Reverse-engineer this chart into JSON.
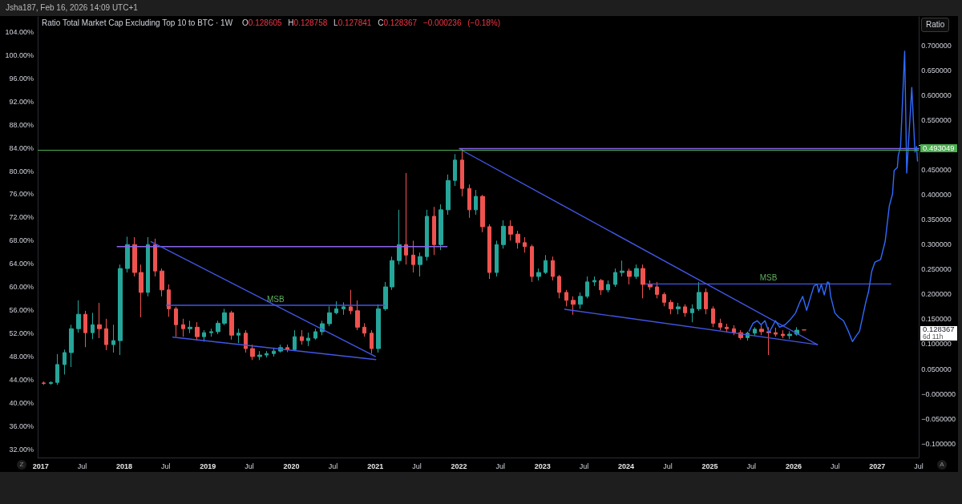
{
  "chart_data": {
    "type": "candlestick",
    "title": "Ratio Total Market Cap Excluding Top 10 to BTC · 1W",
    "subtitle": "O0.128605 H0.128758 L0.127841 C0.128367 −0.000236 (−0.18%)",
    "xlim": [
      "2016-12-19",
      "2027-07-02"
    ],
    "xticks": [
      "2017",
      {
        "value": "2017-07",
        "label": "Jul"
      },
      "2018",
      {
        "value": "2018-07",
        "label": "Jul"
      },
      "2019",
      {
        "value": "2019-07",
        "label": "Jul"
      },
      "2020",
      {
        "value": "2020-07",
        "label": "Jul"
      },
      "2021",
      {
        "value": "2021-07",
        "label": "Jul"
      },
      "2022",
      {
        "value": "2022-07",
        "label": "Jul"
      },
      "2023",
      {
        "value": "2023-07",
        "label": "Jul"
      },
      "2024",
      {
        "value": "2024-07",
        "label": "Jul"
      },
      "2025",
      {
        "value": "2025-07",
        "label": "Jul"
      },
      "2026",
      {
        "value": "2026-07",
        "label": "Jul"
      },
      "2027",
      {
        "value": "2027-07",
        "label": "Jul"
      }
    ],
    "ylim": [
      30.6,
      106.6
    ],
    "yticks": [
      {
        "value": 32,
        "label": "32.00%"
      },
      {
        "value": 36,
        "label": "36.00%"
      },
      {
        "value": 40,
        "label": "40.00%"
      },
      {
        "value": 44,
        "label": "44.00%"
      },
      {
        "value": 48,
        "label": "48.00%"
      },
      {
        "value": 52,
        "label": "52.00%"
      },
      {
        "value": 56,
        "label": "56.00%"
      },
      {
        "value": 60,
        "label": "60.00%"
      },
      {
        "value": 64,
        "label": "64.00%"
      },
      {
        "value": 68,
        "label": "68.00%"
      },
      {
        "value": 72,
        "label": "72.00%"
      },
      {
        "value": 76,
        "label": "76.00%"
      },
      {
        "value": 80,
        "label": "80.00%"
      },
      {
        "value": 84,
        "label": "84.00%"
      },
      {
        "value": 88,
        "label": "88.00%"
      },
      {
        "value": 92,
        "label": "92.00%"
      },
      {
        "value": 96,
        "label": "96.00%"
      },
      {
        "value": 100,
        "label": "100.00%"
      },
      {
        "value": 104,
        "label": "104.00%"
      }
    ],
    "y2lim": [
      -0.128,
      0.758
    ],
    "y2ticks": [
      {
        "value": -0.1,
        "label": "−0.100000"
      },
      {
        "value": -0.05,
        "label": "−0.050000"
      },
      {
        "value": 0,
        "label": "−0.000000"
      },
      {
        "value": 0.05,
        "label": "0.050000"
      },
      {
        "value": 0.1,
        "label": "0.100000"
      },
      {
        "value": 0.15,
        "label": "0.150000"
      },
      {
        "value": 0.2,
        "label": "0.200000"
      },
      {
        "value": 0.25,
        "label": "0.250000"
      },
      {
        "value": 0.3,
        "label": "0.300000"
      },
      {
        "value": 0.35,
        "label": "0.350000"
      },
      {
        "value": 0.4,
        "label": "0.400000"
      },
      {
        "value": 0.45,
        "label": "0.450000"
      },
      {
        "value": 0.5,
        "label": null
      },
      {
        "value": 0.55,
        "label": "0.550000"
      },
      {
        "value": 0.6,
        "label": "0.600000"
      },
      {
        "value": 0.65,
        "label": "0.650000"
      },
      {
        "value": 0.7,
        "label": "0.700000"
      }
    ],
    "series": [
      {
        "axis": "y2",
        "x": [
          "2017-01-15",
          "2017-02-15",
          "2017-03-15",
          "2017-04-15",
          "2017-05-15",
          "2017-06-15",
          "2017-07-15",
          "2017-08-15",
          "2017-09-15",
          "2017-10-15",
          "2017-11-15",
          "2017-12-15",
          "2018-01-15",
          "2018-02-15",
          "2018-03-15",
          "2018-04-15",
          "2018-05-15",
          "2018-06-15",
          "2018-07-15",
          "2018-08-15",
          "2018-09-15",
          "2018-10-15",
          "2018-11-15",
          "2018-12-15",
          "2019-01-15",
          "2019-02-15",
          "2019-03-15",
          "2019-04-15",
          "2019-05-15",
          "2019-06-15",
          "2019-07-15",
          "2019-08-15",
          "2019-09-15",
          "2019-10-15",
          "2019-11-15",
          "2019-12-15",
          "2020-01-15",
          "2020-02-15",
          "2020-03-15",
          "2020-04-15",
          "2020-05-15",
          "2020-06-15",
          "2020-07-15",
          "2020-08-15",
          "2020-09-15",
          "2020-10-15",
          "2020-11-15",
          "2020-12-15",
          "2021-01-15",
          "2021-02-15",
          "2021-03-15",
          "2021-04-15",
          "2021-05-15",
          "2021-06-15",
          "2021-07-15",
          "2021-08-15",
          "2021-09-15",
          "2021-10-15",
          "2021-11-15",
          "2021-12-15",
          "2022-01-15",
          "2022-02-15",
          "2022-03-15",
          "2022-04-15",
          "2022-05-15",
          "2022-06-15",
          "2022-07-15",
          "2022-08-15",
          "2022-09-15",
          "2022-10-15",
          "2022-11-15",
          "2022-12-15",
          "2023-01-15",
          "2023-02-15",
          "2023-03-15",
          "2023-04-15",
          "2023-05-15",
          "2023-06-15",
          "2023-07-15",
          "2023-08-15",
          "2023-09-15",
          "2023-10-15",
          "2023-11-15",
          "2023-12-15",
          "2024-01-15",
          "2024-02-15",
          "2024-03-15",
          "2024-04-15",
          "2024-05-15",
          "2024-06-15",
          "2024-07-15",
          "2024-08-15",
          "2024-09-15",
          "2024-10-15",
          "2024-11-15",
          "2024-12-15",
          "2025-01-15",
          "2025-02-15",
          "2025-03-15",
          "2025-04-15",
          "2025-05-15",
          "2025-06-15",
          "2025-07-15",
          "2025-08-15",
          "2025-09-15",
          "2025-10-15",
          "2025-11-15",
          "2025-12-15",
          "2026-01-15",
          "2026-02-16"
        ],
        "ohlc": [
          [
            0.022,
            0.025,
            0.018,
            0.021
          ],
          [
            0.021,
            0.025,
            0.018,
            0.023
          ],
          [
            0.023,
            0.08,
            0.018,
            0.059
          ],
          [
            0.059,
            0.089,
            0.039,
            0.083
          ],
          [
            0.083,
            0.139,
            0.054,
            0.131
          ],
          [
            0.131,
            0.188,
            0.123,
            0.16
          ],
          [
            0.16,
            0.167,
            0.094,
            0.123
          ],
          [
            0.123,
            0.163,
            0.11,
            0.139
          ],
          [
            0.139,
            0.183,
            0.112,
            0.131
          ],
          [
            0.131,
            0.151,
            0.088,
            0.099
          ],
          [
            0.099,
            0.139,
            0.083,
            0.107
          ],
          [
            0.107,
            0.26,
            0.078,
            0.252
          ],
          [
            0.252,
            0.316,
            0.244,
            0.3
          ],
          [
            0.3,
            0.315,
            0.236,
            0.244
          ],
          [
            0.244,
            0.26,
            0.154,
            0.204
          ],
          [
            0.204,
            0.315,
            0.196,
            0.3
          ],
          [
            0.3,
            0.312,
            0.236,
            0.247
          ],
          [
            0.247,
            0.252,
            0.196,
            0.209
          ],
          [
            0.209,
            0.22,
            0.155,
            0.171
          ],
          [
            0.171,
            0.175,
            0.115,
            0.139
          ],
          [
            0.139,
            0.151,
            0.115,
            0.131
          ],
          [
            0.131,
            0.147,
            0.122,
            0.134
          ],
          [
            0.134,
            0.144,
            0.107,
            0.115
          ],
          [
            0.115,
            0.128,
            0.105,
            0.123
          ],
          [
            0.123,
            0.131,
            0.115,
            0.125
          ],
          [
            0.125,
            0.147,
            0.12,
            0.142
          ],
          [
            0.142,
            0.171,
            0.138,
            0.163
          ],
          [
            0.163,
            0.167,
            0.109,
            0.118
          ],
          [
            0.118,
            0.131,
            0.102,
            0.122
          ],
          [
            0.122,
            0.128,
            0.083,
            0.091
          ],
          [
            0.091,
            0.099,
            0.068,
            0.075
          ],
          [
            0.075,
            0.086,
            0.068,
            0.078
          ],
          [
            0.078,
            0.086,
            0.073,
            0.081
          ],
          [
            0.081,
            0.093,
            0.075,
            0.086
          ],
          [
            0.086,
            0.099,
            0.083,
            0.093
          ],
          [
            0.093,
            0.099,
            0.084,
            0.089
          ],
          [
            0.089,
            0.128,
            0.086,
            0.115
          ],
          [
            0.115,
            0.128,
            0.099,
            0.107
          ],
          [
            0.107,
            0.123,
            0.096,
            0.112
          ],
          [
            0.112,
            0.131,
            0.109,
            0.125
          ],
          [
            0.125,
            0.147,
            0.118,
            0.141
          ],
          [
            0.141,
            0.176,
            0.136,
            0.163
          ],
          [
            0.163,
            0.186,
            0.16,
            0.171
          ],
          [
            0.171,
            0.184,
            0.159,
            0.175
          ],
          [
            0.175,
            0.209,
            0.16,
            0.167
          ],
          [
            0.167,
            0.188,
            0.128,
            0.134
          ],
          [
            0.134,
            0.142,
            0.115,
            0.122
          ],
          [
            0.122,
            0.128,
            0.081,
            0.091
          ],
          [
            0.091,
            0.18,
            0.083,
            0.171
          ],
          [
            0.171,
            0.225,
            0.167,
            0.215
          ],
          [
            0.215,
            0.276,
            0.209,
            0.268
          ],
          [
            0.268,
            0.37,
            0.26,
            0.3
          ],
          [
            0.3,
            0.444,
            0.26,
            0.279
          ],
          [
            0.279,
            0.308,
            0.244,
            0.26
          ],
          [
            0.26,
            0.284,
            0.236,
            0.276
          ],
          [
            0.276,
            0.37,
            0.268,
            0.357
          ],
          [
            0.357,
            0.376,
            0.279,
            0.3
          ],
          [
            0.3,
            0.381,
            0.289,
            0.37
          ],
          [
            0.37,
            0.441,
            0.36,
            0.429
          ],
          [
            0.429,
            0.482,
            0.418,
            0.47
          ],
          [
            0.47,
            0.493,
            0.397,
            0.413
          ],
          [
            0.413,
            0.421,
            0.354,
            0.37
          ],
          [
            0.37,
            0.41,
            0.36,
            0.397
          ],
          [
            0.397,
            0.4,
            0.325,
            0.336
          ],
          [
            0.336,
            0.341,
            0.231,
            0.244
          ],
          [
            0.244,
            0.308,
            0.236,
            0.3
          ],
          [
            0.3,
            0.349,
            0.292,
            0.337
          ],
          [
            0.337,
            0.349,
            0.308,
            0.321
          ],
          [
            0.321,
            0.328,
            0.292,
            0.304
          ],
          [
            0.304,
            0.315,
            0.284,
            0.296
          ],
          [
            0.296,
            0.3,
            0.225,
            0.236
          ],
          [
            0.236,
            0.252,
            0.228,
            0.244
          ],
          [
            0.244,
            0.279,
            0.241,
            0.268
          ],
          [
            0.268,
            0.276,
            0.228,
            0.236
          ],
          [
            0.236,
            0.239,
            0.192,
            0.204
          ],
          [
            0.204,
            0.209,
            0.176,
            0.188
          ],
          [
            0.188,
            0.196,
            0.159,
            0.18
          ],
          [
            0.18,
            0.204,
            0.171,
            0.196
          ],
          [
            0.196,
            0.236,
            0.192,
            0.225
          ],
          [
            0.225,
            0.236,
            0.217,
            0.228
          ],
          [
            0.228,
            0.231,
            0.199,
            0.209
          ],
          [
            0.209,
            0.228,
            0.204,
            0.22
          ],
          [
            0.22,
            0.252,
            0.215,
            0.244
          ],
          [
            0.244,
            0.268,
            0.236,
            0.247
          ],
          [
            0.247,
            0.252,
            0.22,
            0.236
          ],
          [
            0.236,
            0.26,
            0.231,
            0.252
          ],
          [
            0.252,
            0.26,
            0.192,
            0.22
          ],
          [
            0.22,
            0.228,
            0.209,
            0.215
          ],
          [
            0.215,
            0.225,
            0.192,
            0.2
          ],
          [
            0.2,
            0.204,
            0.176,
            0.184
          ],
          [
            0.184,
            0.189,
            0.16,
            0.171
          ],
          [
            0.171,
            0.183,
            0.16,
            0.175
          ],
          [
            0.175,
            0.18,
            0.155,
            0.163
          ],
          [
            0.163,
            0.18,
            0.144,
            0.171
          ],
          [
            0.171,
            0.225,
            0.167,
            0.204
          ],
          [
            0.204,
            0.212,
            0.16,
            0.171
          ],
          [
            0.171,
            0.176,
            0.134,
            0.142
          ],
          [
            0.142,
            0.151,
            0.128,
            0.134
          ],
          [
            0.134,
            0.141,
            0.123,
            0.131
          ],
          [
            0.131,
            0.138,
            0.118,
            0.123
          ],
          [
            0.123,
            0.128,
            0.109,
            0.113
          ],
          [
            0.113,
            0.125,
            0.107,
            0.122
          ],
          [
            0.122,
            0.134,
            0.117,
            0.13
          ],
          [
            0.13,
            0.138,
            0.118,
            0.125
          ],
          [
            0.125,
            0.134,
            0.078,
            0.123
          ],
          [
            0.123,
            0.133,
            0.115,
            0.12
          ],
          [
            0.12,
            0.128,
            0.112,
            0.117
          ],
          [
            0.117,
            0.126,
            0.11,
            0.12
          ],
          [
            0.12,
            0.134,
            0.117,
            0.128
          ],
          [
            0.128605,
            0.128758,
            0.127841,
            0.128367
          ]
        ],
        "colors": [
          "#ef5350",
          "#26a69a",
          "#26a69a",
          "#26a69a",
          "#26a69a",
          "#26a69a",
          "#ef5350",
          "#26a69a",
          "#ef5350",
          "#ef5350",
          "#26a69a",
          "#26a69a",
          "#26a69a",
          "#ef5350",
          "#ef5350",
          "#26a69a",
          "#ef5350",
          "#ef5350",
          "#ef5350",
          "#ef5350",
          "#ef5350",
          "#26a69a",
          "#ef5350",
          "#26a69a",
          "#26a69a",
          "#26a69a",
          "#26a69a",
          "#ef5350",
          "#26a69a",
          "#ef5350",
          "#ef5350",
          "#26a69a",
          "#26a69a",
          "#26a69a",
          "#26a69a",
          "#ef5350",
          "#26a69a",
          "#ef5350",
          "#26a69a",
          "#26a69a",
          "#26a69a",
          "#26a69a",
          "#26a69a",
          "#26a69a",
          "#ef5350",
          "#ef5350",
          "#ef5350",
          "#ef5350",
          "#26a69a",
          "#26a69a",
          "#26a69a",
          "#26a69a",
          "#ef5350",
          "#ef5350",
          "#26a69a",
          "#26a69a",
          "#ef5350",
          "#26a69a",
          "#26a69a",
          "#26a69a",
          "#ef5350",
          "#ef5350",
          "#26a69a",
          "#ef5350",
          "#ef5350",
          "#26a69a",
          "#26a69a",
          "#ef5350",
          "#ef5350",
          "#ef5350",
          "#ef5350",
          "#26a69a",
          "#26a69a",
          "#ef5350",
          "#ef5350",
          "#ef5350",
          "#ef5350",
          "#26a69a",
          "#26a69a",
          "#26a69a",
          "#ef5350",
          "#26a69a",
          "#26a69a",
          "#26a69a",
          "#ef5350",
          "#26a69a",
          "#ef5350",
          "#ef5350",
          "#ef5350",
          "#ef5350",
          "#ef5350",
          "#26a69a",
          "#ef5350",
          "#26a69a",
          "#26a69a",
          "#ef5350",
          "#ef5350",
          "#ef5350",
          "#ef5350",
          "#ef5350",
          "#ef5350",
          "#26a69a",
          "#26a69a",
          "#ef5350",
          "#ef5350",
          "#ef5350",
          "#ef5350",
          "#26a69a",
          "#26a69a",
          "#ef5350"
        ]
      },
      {
        "type": "line",
        "axis": "y2",
        "color": "#8a64e8",
        "x": [
          "2017-12-01",
          "2021-11-10"
        ],
        "values": [
          0.296,
          0.296
        ]
      },
      {
        "type": "line",
        "axis": "y2",
        "color": "#4256e6",
        "x": [
          "2018-04-28",
          "2021-01-01"
        ],
        "values": [
          0.306,
          0.075
        ]
      },
      {
        "type": "line",
        "axis": "y2",
        "name": "MSB",
        "color": "#4256e6",
        "x": [
          "2018-07-04",
          "2021-02-11"
        ],
        "values": [
          0.178,
          0.178
        ]
      },
      {
        "type": "line",
        "axis": "y2",
        "color": "#4256e6",
        "x": [
          "2018-08-01",
          "2021-01-03"
        ],
        "values": [
          0.114,
          0.069
        ]
      },
      {
        "type": "line",
        "axis": "y2",
        "color": "#4256e6",
        "x": [
          "2022-01-09",
          "2026-04-15"
        ],
        "values": [
          0.491,
          0.099
        ]
      },
      {
        "type": "line",
        "axis": "y2",
        "color": "#4256e6",
        "x": [
          "2023-04-08",
          "2026-04-15"
        ],
        "values": [
          0.17,
          0.099
        ]
      },
      {
        "type": "line",
        "axis": "y2",
        "name": "MSB",
        "color": "#4256e6",
        "x": [
          "2024-03-27",
          "2027-03-02"
        ],
        "values": [
          0.221,
          0.221
        ]
      },
      {
        "type": "line",
        "axis": "y2",
        "color": "#8a64e8",
        "x": [
          "2022-01-03",
          "2027-07-02"
        ],
        "values": [
          0.493,
          0.493
        ]
      },
      {
        "type": "line",
        "axis": "y2",
        "color": "#2f6bff",
        "x": [
          "2025-06-21",
          "2025-07-08",
          "2025-07-26",
          "2025-08-12",
          "2025-08-29",
          "2025-09-16",
          "2025-10-14",
          "2025-11-01",
          "2025-11-25",
          "2025-12-19",
          "2026-01-10",
          "2026-01-28",
          "2026-02-10",
          "2026-02-27",
          "2026-03-17",
          "2026-03-31",
          "2026-04-14",
          "2026-04-21",
          "2026-05-02",
          "2026-05-15",
          "2026-05-29",
          "2026-06-05",
          "2026-06-12",
          "2026-06-30",
          "2026-07-17",
          "2026-08-07",
          "2026-08-28",
          "2026-09-15",
          "2026-09-29",
          "2026-10-16",
          "2026-11-13",
          "2026-11-24",
          "2026-12-08",
          "2026-12-22",
          "2027-01-16",
          "2027-02-05",
          "2027-02-23",
          "2027-03-09",
          "2027-03-16",
          "2027-03-30",
          "2027-04-03",
          "2027-04-13",
          "2027-05-01",
          "2027-05-10",
          "2027-06-01",
          "2027-06-15",
          "2027-06-22",
          "2027-06-26"
        ],
        "values": [
          0.126,
          0.142,
          0.147,
          0.139,
          0.147,
          0.123,
          0.147,
          0.134,
          0.139,
          0.15,
          0.163,
          0.184,
          0.196,
          0.168,
          0.196,
          0.217,
          0.22,
          0.204,
          0.22,
          0.199,
          0.225,
          0.223,
          0.196,
          0.163,
          0.154,
          0.147,
          0.126,
          0.105,
          0.115,
          0.126,
          0.186,
          0.205,
          0.246,
          0.265,
          0.27,
          0.307,
          0.378,
          0.402,
          0.449,
          0.455,
          0.479,
          0.497,
          0.689,
          0.444,
          0.616,
          0.486,
          0.497,
          0.468
        ]
      }
    ],
    "ref_lines": [
      {
        "axis": "y2",
        "value": 0.493049,
        "label": "0.493049",
        "color": "#4caf50"
      }
    ],
    "annotations": [
      "Jsha187, Feb 16, 2026 14:09 UTC+1",
      "0.128367",
      "6d 11h",
      "Ratio",
      "Z",
      "A"
    ]
  }
}
